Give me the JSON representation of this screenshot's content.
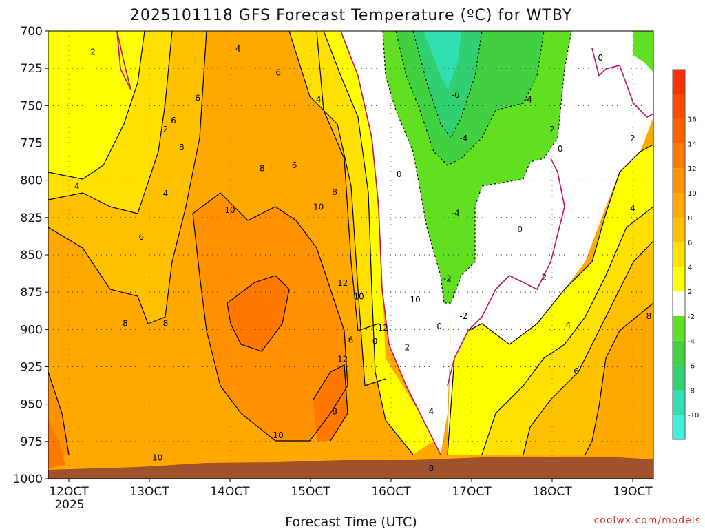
{
  "chart_data": {
    "type": "heatmap",
    "title": "2025101118 GFS Forecast Temperature (ºC) for WTBY",
    "xlabel": "Forecast Time (UTC)",
    "ylabel": "",
    "x_ticks": [
      "12OCT",
      "13OCT",
      "14OCT",
      "15OCT",
      "16OCT",
      "17OCT",
      "18OCT",
      "19OCT"
    ],
    "x_tick_sub": "2025",
    "y_ticks": [
      700,
      725,
      750,
      775,
      800,
      825,
      850,
      875,
      900,
      925,
      950,
      975,
      1000
    ],
    "ylim": [
      1000,
      700
    ],
    "grid": true,
    "colorbar": {
      "levels": [
        -12,
        -10,
        -8,
        -6,
        -4,
        -2,
        2,
        4,
        6,
        8,
        10,
        12,
        14,
        16,
        18
      ],
      "tick_labels": [
        "-10",
        "-8",
        "-6",
        "-4",
        "-2",
        "2",
        "4",
        "6",
        "8",
        "10",
        "12",
        "14",
        "16"
      ],
      "colors": [
        "#40f0e0",
        "#30e0b0",
        "#30d070",
        "#40d040",
        "#60e020",
        "#ffffff",
        "#ffff00",
        "#ffe000",
        "#ffc000",
        "#ffa800",
        "#ff9000",
        "#ff7800",
        "#ff6000",
        "#ff4800",
        "#ff3000"
      ],
      "placement": "right"
    },
    "time_columns_oct": [
      11.8,
      12.5,
      13.5,
      14.5,
      15.2,
      15.8,
      16.2,
      16.6,
      17.2,
      18,
      18.6,
      19.3
    ],
    "temperature_profiles": [
      {
        "time": "11.8",
        "levels": [
          700,
          750,
          800,
          850,
          900,
          950,
          990
        ],
        "values": [
          2,
          3,
          4,
          6,
          8,
          10,
          11
        ]
      },
      {
        "time": "13.5",
        "levels": [
          700,
          750,
          800,
          850,
          900,
          950,
          990
        ],
        "values": [
          4,
          6,
          8,
          9,
          10,
          10,
          10
        ]
      },
      {
        "time": "14.5",
        "levels": [
          700,
          750,
          800,
          850,
          900,
          950,
          990
        ],
        "values": [
          5,
          7,
          9,
          11,
          12,
          10,
          10
        ]
      },
      {
        "time": "15.2",
        "levels": [
          700,
          750,
          800,
          850,
          900,
          950,
          990
        ],
        "values": [
          3,
          5,
          8,
          10,
          10,
          12,
          10
        ]
      },
      {
        "time": "15.8",
        "levels": [
          700,
          750,
          800,
          850,
          900,
          950,
          990
        ],
        "values": [
          1,
          1,
          2,
          4,
          6,
          8,
          9
        ]
      },
      {
        "time": "16.6",
        "levels": [
          700,
          750,
          800,
          850,
          900,
          950,
          990
        ],
        "values": [
          -7,
          -6,
          -3,
          0,
          1,
          3,
          6
        ]
      },
      {
        "time": "17.2",
        "levels": [
          700,
          750,
          800,
          850,
          900,
          950,
          990
        ],
        "values": [
          -8,
          -6,
          -3,
          -1,
          2,
          5,
          8
        ]
      },
      {
        "time": "18",
        "levels": [
          700,
          750,
          800,
          850,
          900,
          950,
          990
        ],
        "values": [
          -5,
          -3,
          0,
          1,
          3,
          6,
          8
        ]
      },
      {
        "time": "19.3",
        "levels": [
          700,
          750,
          800,
          850,
          900,
          950,
          990
        ],
        "values": [
          -3,
          0,
          2,
          5,
          7,
          9,
          9
        ]
      }
    ],
    "contour_labels": [
      "-6",
      "-4",
      "-4",
      "-4",
      "-2",
      "-2",
      "0",
      "0",
      "0",
      "0",
      "0",
      "0",
      "2",
      "2",
      "2",
      "2",
      "2",
      "2",
      "4",
      "4",
      "4",
      "4",
      "4",
      "4",
      "4",
      "6",
      "6",
      "6",
      "6",
      "6",
      "6",
      "6",
      "8",
      "8",
      "8",
      "8",
      "8",
      "8",
      "8",
      "8",
      "10",
      "10",
      "10",
      "10",
      "10",
      "10",
      "12",
      "12",
      "12"
    ],
    "ground_color": "#a0522d"
  },
  "credit": "coolwx.com/models"
}
